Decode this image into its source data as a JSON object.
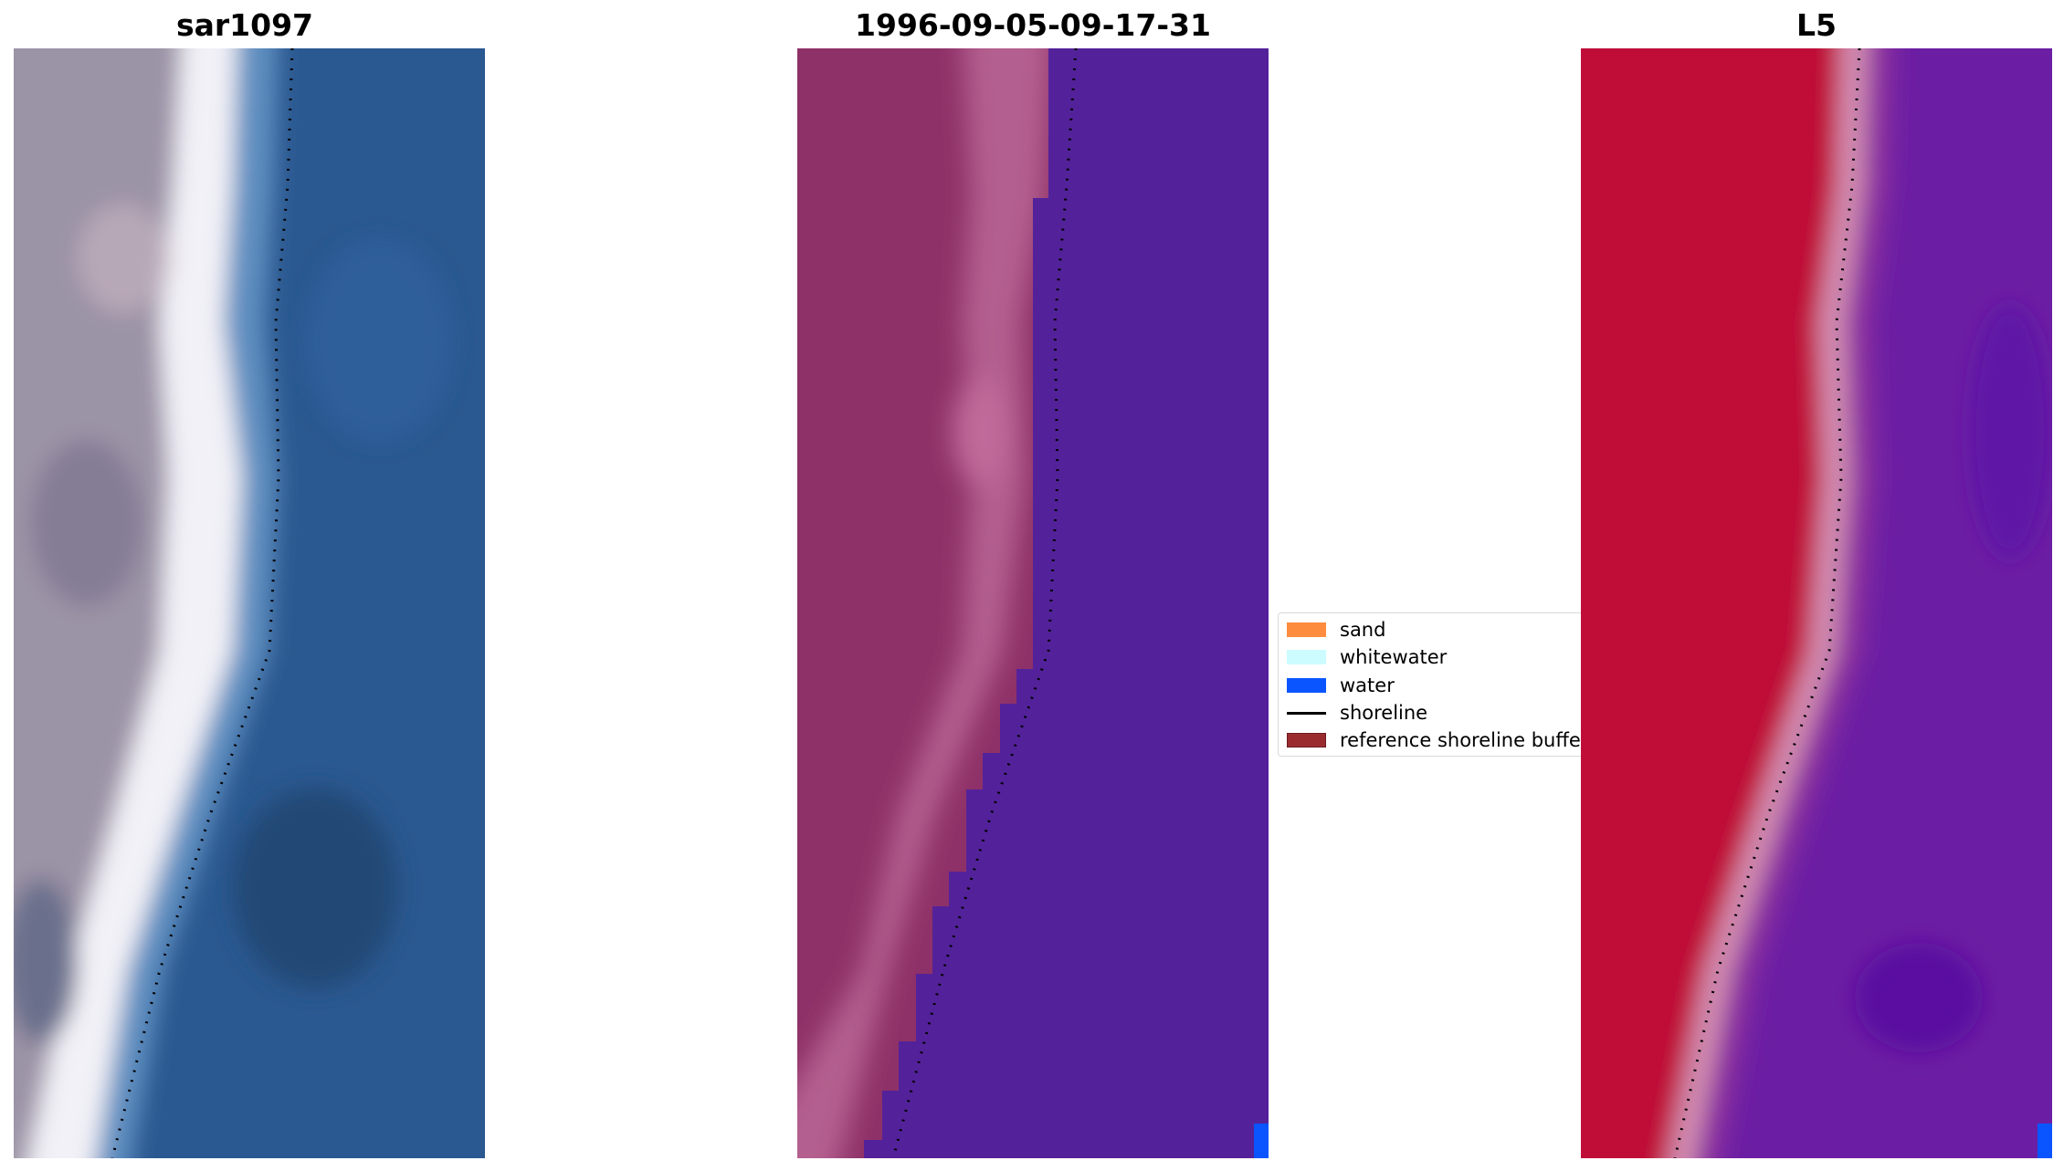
{
  "panels": [
    {
      "title": "sar1097"
    },
    {
      "title": "1996-09-05-09-17-31"
    },
    {
      "title": "L5"
    }
  ],
  "legend": {
    "items": [
      {
        "label": "sand",
        "color": "#fd8c3e",
        "kind": "patch"
      },
      {
        "label": "whitewater",
        "color": "#ccfcff",
        "kind": "patch"
      },
      {
        "label": "water",
        "color": "#0a55ff",
        "kind": "patch"
      },
      {
        "label": "shoreline",
        "color": "#000000",
        "kind": "line"
      },
      {
        "label": "reference shoreline buffer",
        "color": "#9a2c30",
        "kind": "patch"
      }
    ]
  },
  "colors": {
    "sar_land": "#9b93a6",
    "sar_whitewater": "#f2f1f7",
    "sar_water": "#2a5890",
    "classified_land": "#8e3168",
    "classified_beach": "#b35e8f",
    "classified_water": "#53229a",
    "classified_water_pixel": "#0a55ff",
    "index_land": "#bf0b38",
    "index_transition": "#d48fb2",
    "index_water": "#6b1ea3",
    "shoreline": "#000000"
  }
}
